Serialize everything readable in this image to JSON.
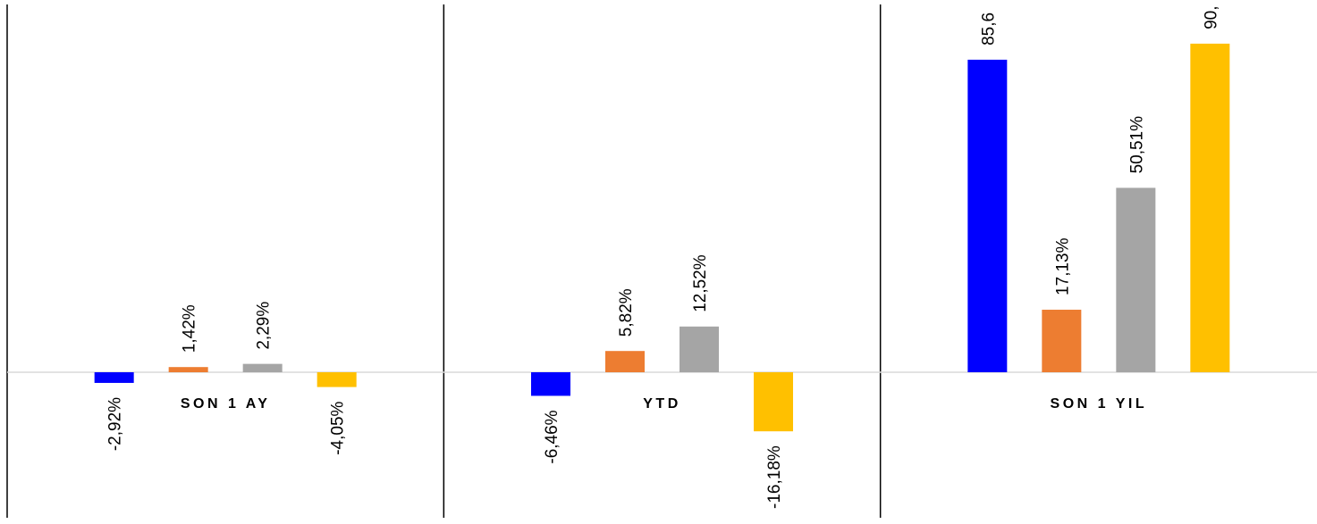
{
  "chart_data": {
    "type": "bar",
    "categories": [
      "SON 1 AY",
      "YTD",
      "SON 1 YIL"
    ],
    "series": [
      {
        "color": "#0000FF",
        "values": [
          -2.92,
          -6.46,
          85.6
        ]
      },
      {
        "color": "#ED7D31",
        "values": [
          1.42,
          5.82,
          17.13
        ]
      },
      {
        "color": "#A5A5A5",
        "values": [
          2.29,
          12.52,
          50.51
        ]
      },
      {
        "color": "#FFC000",
        "values": [
          -4.05,
          -16.18,
          90.0
        ]
      }
    ],
    "data_labels": [
      [
        "-2,92%",
        "-6,46%",
        "85,6"
      ],
      [
        "1,42%",
        "5,82%",
        "17,13%"
      ],
      [
        "2,29%",
        "12,52%",
        "50,51%"
      ],
      [
        "-4,05%",
        "-16,18%",
        "90,"
      ]
    ],
    "title": "",
    "xlabel": "",
    "ylabel": "",
    "legend": "none",
    "grid": false,
    "ylim": [
      -40.5,
      93.8
    ]
  }
}
